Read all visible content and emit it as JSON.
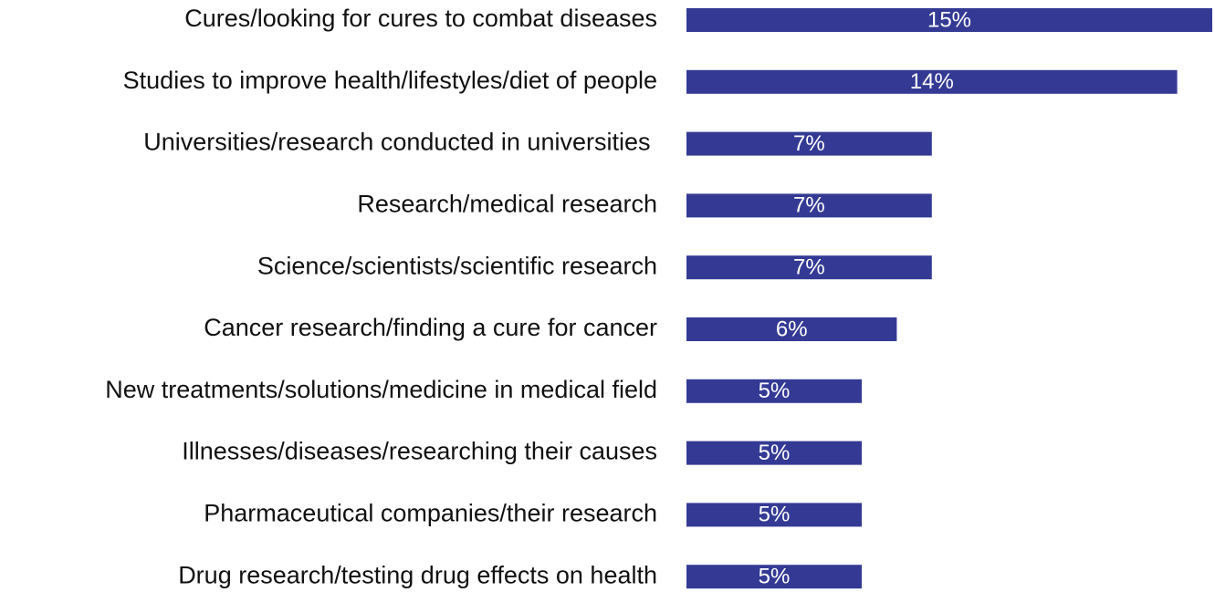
{
  "chart_data": {
    "type": "bar",
    "orientation": "horizontal",
    "color": "#343a94",
    "categories": [
      "Cures/looking for cures to combat diseases",
      "Studies to improve health/lifestyles/diet of people",
      "Universities/research conducted in universities ",
      "Research/medical research",
      "Science/scientists/scientific research",
      "Cancer research/finding a cure for cancer",
      "New treatments/solutions/medicine in medical field",
      "Illnesses/diseases/researching their causes",
      "Pharmaceutical companies/their research",
      "Drug research/testing drug effects on health"
    ],
    "values": [
      15,
      14,
      7,
      7,
      7,
      6,
      5,
      5,
      5,
      5
    ],
    "value_labels": [
      "15%",
      "14%",
      "7%",
      "7%",
      "7%",
      "6%",
      "5%",
      "5%",
      "5%",
      "5%"
    ]
  }
}
